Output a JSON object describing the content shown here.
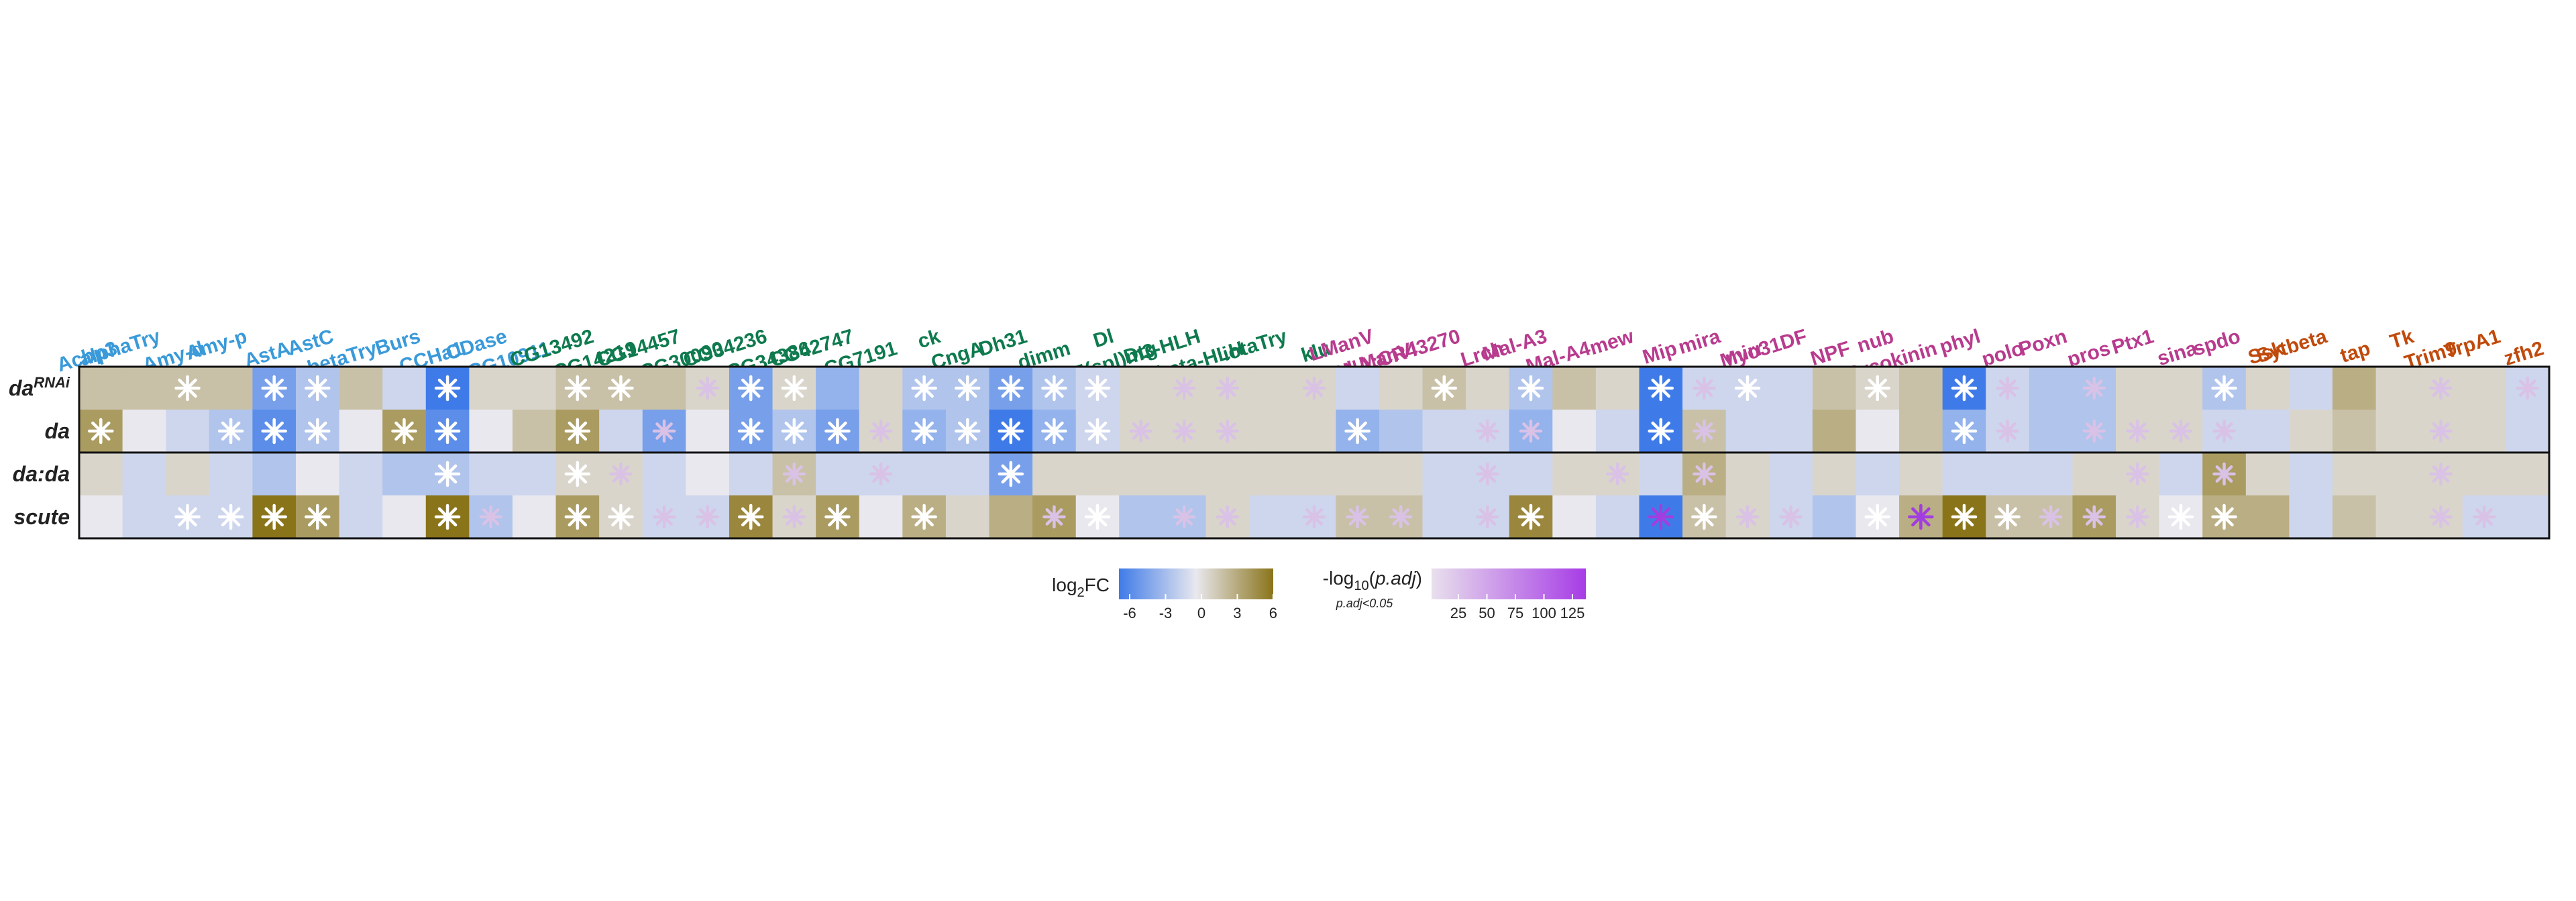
{
  "chart_data": {
    "type": "heatmap",
    "genes": [
      {
        "name": "Acbp3",
        "group": "g1"
      },
      {
        "name": "alphaTry",
        "group": "g1"
      },
      {
        "name": "Amy-d",
        "group": "g1"
      },
      {
        "name": "Amy-p",
        "group": "g1"
      },
      {
        "name": "AstA",
        "group": "g1"
      },
      {
        "name": "AstC",
        "group": "g1"
      },
      {
        "name": "betaTry",
        "group": "g1"
      },
      {
        "name": "Burs",
        "group": "g1"
      },
      {
        "name": "CCHa1",
        "group": "g1"
      },
      {
        "name": "CDase",
        "group": "g1"
      },
      {
        "name": "CG10911",
        "group": "g1"
      },
      {
        "name": "CG13492",
        "group": "g2"
      },
      {
        "name": "CG14219",
        "group": "g2"
      },
      {
        "name": "CG14457",
        "group": "g2"
      },
      {
        "name": "CG30090",
        "group": "g2"
      },
      {
        "name": "CG34236",
        "group": "g2"
      },
      {
        "name": "CG34386",
        "group": "g2"
      },
      {
        "name": "CG42747",
        "group": "g2"
      },
      {
        "name": "CG7191",
        "group": "g2"
      },
      {
        "name": "ck",
        "group": "g2"
      },
      {
        "name": "CngA",
        "group": "g2"
      },
      {
        "name": "Dh31",
        "group": "g2"
      },
      {
        "name": "dimm",
        "group": "g2"
      },
      {
        "name": "Dl",
        "group": "g2"
      },
      {
        "name": "Dtg",
        "group": "g2"
      },
      {
        "name": "E(spl)m3-HLH",
        "group": "g2"
      },
      {
        "name": "E(spl)mbeta-HLH",
        "group": "g2"
      },
      {
        "name": "iotaTry",
        "group": "g2"
      },
      {
        "name": "klu",
        "group": "g2"
      },
      {
        "name": "LManV",
        "group": "g3"
      },
      {
        "name": "LManVI",
        "group": "g3"
      },
      {
        "name": "lncRNA:CR43270",
        "group": "g3"
      },
      {
        "name": "Lrch",
        "group": "g3"
      },
      {
        "name": "Mal-A3",
        "group": "g3"
      },
      {
        "name": "Mal-A4",
        "group": "g3"
      },
      {
        "name": "mew",
        "group": "g3"
      },
      {
        "name": "Mip",
        "group": "g3"
      },
      {
        "name": "mira",
        "group": "g3"
      },
      {
        "name": "mirr",
        "group": "g3"
      },
      {
        "name": "Myo31DF",
        "group": "g3"
      },
      {
        "name": "NPF",
        "group": "g3"
      },
      {
        "name": "nub",
        "group": "g3"
      },
      {
        "name": "Orcokinin",
        "group": "g3"
      },
      {
        "name": "phyl",
        "group": "g3"
      },
      {
        "name": "polo",
        "group": "g3"
      },
      {
        "name": "Poxn",
        "group": "g3"
      },
      {
        "name": "pros",
        "group": "g3"
      },
      {
        "name": "Ptx1",
        "group": "g3"
      },
      {
        "name": "sina",
        "group": "g3"
      },
      {
        "name": "spdo",
        "group": "g3"
      },
      {
        "name": "Ssk",
        "group": "g4"
      },
      {
        "name": "Sytbeta",
        "group": "g4"
      },
      {
        "name": "tap",
        "group": "g4"
      },
      {
        "name": "Tk",
        "group": "g4"
      },
      {
        "name": "Trim9",
        "group": "g4"
      },
      {
        "name": "TrpA1",
        "group": "g4"
      },
      {
        "name": "zfh2",
        "group": "g4"
      }
    ],
    "group_colors": {
      "g1": "#3a9ad9",
      "g2": "#0e7a4e",
      "g3": "#b83b8e",
      "g4": "#c04a0c"
    },
    "rows": [
      {
        "label": "da",
        "superscript": "RNAi",
        "highlight": true,
        "values": [
          2,
          2,
          2,
          2,
          -4,
          -2,
          2,
          -1,
          -6,
          1,
          1,
          2,
          2,
          2,
          1,
          -4,
          1,
          -3,
          1,
          -2,
          -2,
          -4,
          -2,
          -1,
          1,
          1,
          1,
          1,
          1,
          -1,
          1,
          2,
          1,
          -2,
          2,
          1,
          -6,
          -1,
          -1,
          -1,
          2,
          1,
          2,
          -6,
          -1,
          -2,
          -2,
          1,
          1,
          -2,
          1,
          -1,
          3,
          1,
          1,
          1,
          -1
        ],
        "stars": [
          0,
          0,
          2,
          0,
          3,
          2,
          0,
          0,
          3,
          0,
          0,
          2,
          2,
          0,
          1,
          3,
          2,
          0,
          0,
          2,
          3,
          3,
          2,
          2,
          0,
          1,
          1,
          0,
          1,
          0,
          0,
          2,
          0,
          2,
          0,
          0,
          3,
          1,
          2,
          0,
          0,
          2,
          0,
          3,
          1,
          0,
          1,
          0,
          0,
          2,
          0,
          0,
          0,
          0,
          1,
          0,
          1
        ]
      },
      {
        "label": "da",
        "superscript": "",
        "highlight": true,
        "values": [
          4,
          0,
          -1,
          -2,
          -5,
          -2,
          0,
          4,
          -5,
          0,
          2,
          4,
          -1,
          -4,
          0,
          -4,
          -2,
          -4,
          1,
          -3,
          -2,
          -6,
          -3,
          -1,
          1,
          1,
          1,
          1,
          1,
          -3,
          -2,
          -1,
          -1,
          -3,
          0,
          -1,
          -6,
          2,
          -1,
          -1,
          3,
          0,
          2,
          -3,
          -1,
          -2,
          -2,
          1,
          1,
          -1,
          -1,
          1,
          2,
          1,
          1,
          1,
          -1
        ],
        "stars": [
          3,
          0,
          0,
          2,
          3,
          2,
          0,
          3,
          3,
          0,
          0,
          3,
          0,
          1,
          0,
          3,
          2,
          2,
          1,
          2,
          3,
          3,
          2,
          2,
          1,
          1,
          1,
          0,
          0,
          2,
          0,
          0,
          1,
          1,
          0,
          0,
          3,
          1,
          0,
          0,
          0,
          0,
          0,
          2,
          1,
          0,
          1,
          1,
          1,
          1,
          0,
          0,
          0,
          0,
          1,
          0,
          0
        ]
      },
      {
        "label": "da:da",
        "superscript": "",
        "highlight": false,
        "values": [
          1,
          -1,
          1,
          -1,
          -2,
          0,
          -1,
          -2,
          -2,
          -1,
          -1,
          1,
          1,
          -1,
          0,
          -1,
          2,
          -1,
          -1,
          -1,
          -1,
          -4,
          1,
          1,
          1,
          1,
          1,
          1,
          1,
          1,
          1,
          -1,
          -1,
          -1,
          1,
          1,
          -1,
          3,
          1,
          -1,
          1,
          -1,
          1,
          -1,
          -1,
          -1,
          1,
          1,
          -1,
          4,
          1,
          -1,
          1,
          1,
          1,
          1,
          1
        ],
        "stars": [
          0,
          0,
          0,
          0,
          0,
          0,
          0,
          0,
          2,
          0,
          0,
          2,
          1,
          0,
          0,
          0,
          1,
          0,
          1,
          0,
          0,
          2,
          0,
          0,
          0,
          0,
          0,
          0,
          0,
          0,
          0,
          0,
          1,
          0,
          0,
          1,
          0,
          1,
          0,
          0,
          0,
          0,
          0,
          0,
          0,
          0,
          0,
          1,
          0,
          1,
          0,
          0,
          0,
          0,
          1,
          0,
          0
        ]
      },
      {
        "label": "scute",
        "superscript": "",
        "highlight": false,
        "values": [
          0,
          -1,
          -1,
          -1,
          6,
          4,
          -1,
          0,
          6,
          -2,
          0,
          4,
          1,
          -1,
          -1,
          5,
          1,
          4,
          0,
          3,
          1,
          3,
          4,
          0,
          -2,
          -2,
          1,
          -1,
          -1,
          2,
          2,
          -1,
          -1,
          5,
          0,
          -1,
          -6,
          2,
          1,
          -1,
          -2,
          0,
          3,
          6,
          2,
          2,
          4,
          1,
          0,
          3,
          3,
          -1,
          2,
          1,
          1,
          -1,
          -1
        ],
        "stars": [
          0,
          0,
          2,
          2,
          2,
          2,
          0,
          0,
          2,
          1,
          0,
          2,
          2,
          1,
          1,
          2,
          1,
          2,
          0,
          2,
          0,
          0,
          1,
          2,
          0,
          1,
          1,
          0,
          1,
          1,
          1,
          0,
          1,
          2,
          0,
          0,
          4,
          2,
          1,
          1,
          0,
          2,
          4,
          2,
          2,
          1,
          1,
          1,
          2,
          2,
          0,
          0,
          0,
          0,
          1,
          1,
          0
        ]
      }
    ],
    "legend": {
      "log2fc": {
        "title_main": "log",
        "title_sub": "2",
        "title_end": "FC",
        "ticks": [
          -6,
          -3,
          0,
          3,
          6
        ],
        "colors": [
          "#3f7be8",
          "#e9e8ee",
          "#8a741a"
        ]
      },
      "padj": {
        "title_pre": "-log",
        "title_sub": "10",
        "title_open": "(",
        "title_italic": "p.adj",
        "title_close": ")",
        "note": "p.adj<0.05",
        "ticks": [
          25,
          50,
          75,
          100,
          125
        ],
        "colors": [
          "#e8e0ec",
          "#a73de6"
        ]
      }
    }
  }
}
